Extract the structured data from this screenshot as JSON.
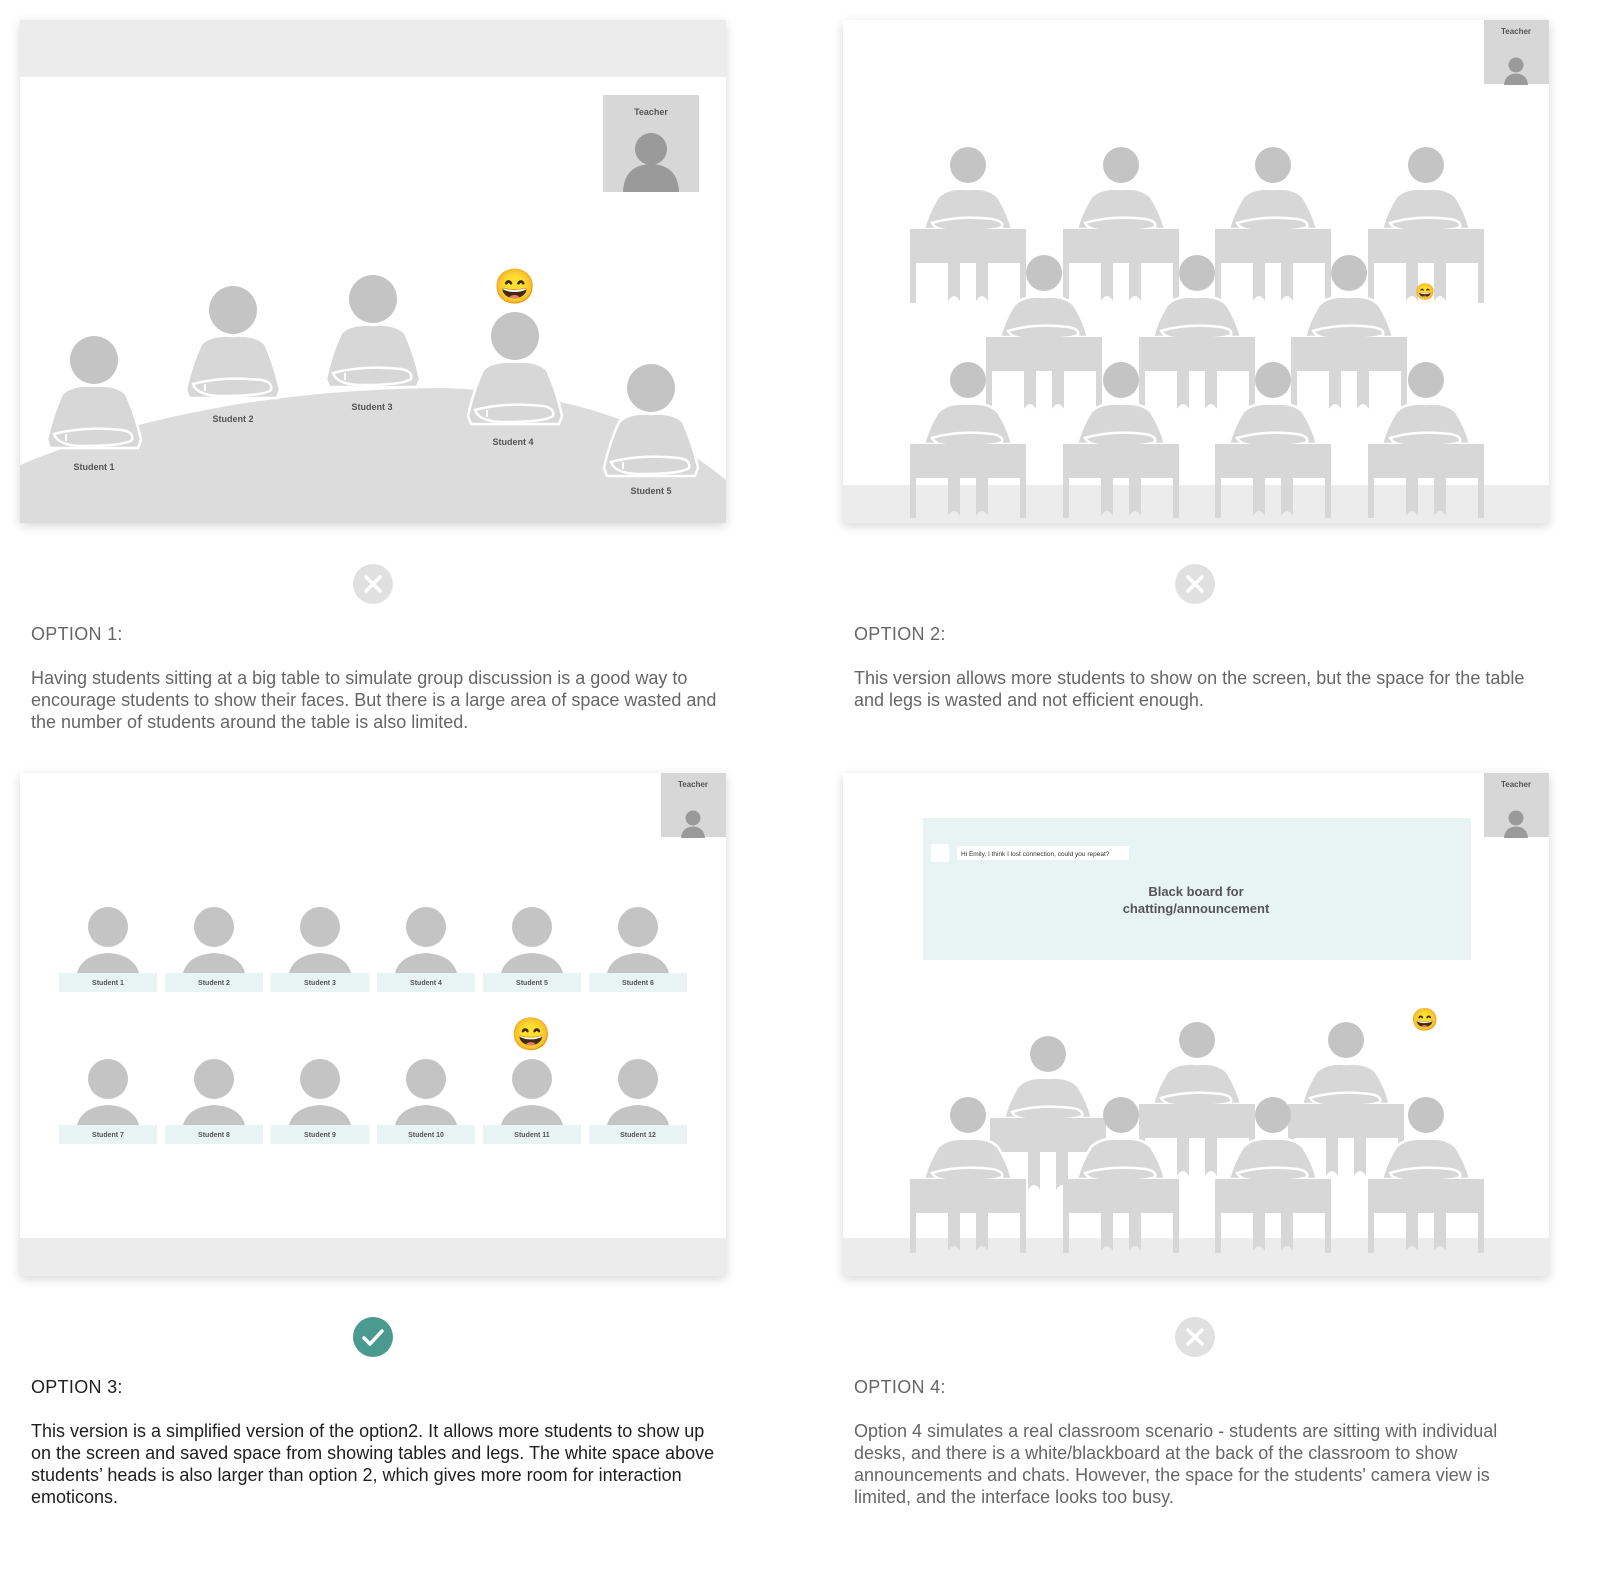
{
  "colors": {
    "accent_check": "#4a9a90",
    "reject_gray": "#e0e0e0",
    "figure_gray": "#c4c4c4",
    "blackboard": "#e8f4f4",
    "desk_label": "#e8f4f4"
  },
  "emoji": "😄",
  "teacher_label": "Teacher",
  "option1": {
    "title": "OPTION 1:",
    "description": "Having students sitting at a big table to simulate group discussion is a good way to encourage students to show their faces. But there is a large area of space wasted and the number of students around the table is also limited.",
    "status": "rejected",
    "status_icon": "x-icon",
    "students": [
      "Student 1",
      "Student 2",
      "Student 3",
      "Student 4",
      "Student 5"
    ]
  },
  "option2": {
    "title": "OPTION 2:",
    "description": "This version allows more students to show on the screen, but the space for the table and legs is wasted and not efficient enough.",
    "status": "rejected",
    "status_icon": "x-icon"
  },
  "option3": {
    "title": "OPTION 3:",
    "description": "This version is a simplified version of the option2. It allows more students to show up on the screen and saved space from showing tables and legs. The white space above students’ heads is also larger than option 2, which gives more room for interaction emoticons.",
    "status": "selected",
    "status_icon": "check-icon",
    "students": [
      "Student 1",
      "Student 2",
      "Student 3",
      "Student 4",
      "Student 5",
      "Student 6",
      "Student 7",
      "Student 8",
      "Student 9",
      "Student 10",
      "Student 11",
      "Student 12"
    ]
  },
  "option4": {
    "title": "OPTION 4:",
    "description": "Option 4 simulates a real classroom scenario - students are sitting with individual desks, and there is a white/blackboard at the back of the classroom to show announcements and chats. However, the space for the students' camera view is limited, and the interface looks too busy.",
    "status": "rejected",
    "status_icon": "x-icon",
    "chat_message": "Hi Emily, I think I lost connection, could you repeat?",
    "blackboard_line1": "Black board for",
    "blackboard_line2": "chatting/announcement"
  }
}
